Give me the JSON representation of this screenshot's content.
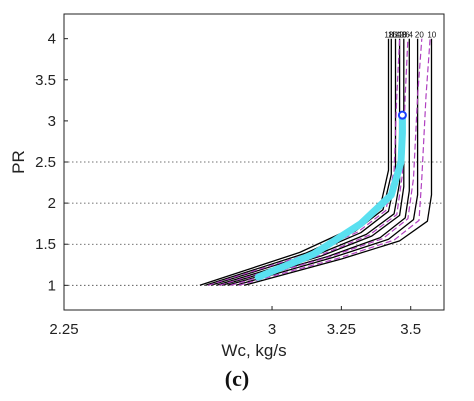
{
  "caption": "(c)",
  "chart_data": {
    "type": "line",
    "xlabel": "Wc, kg/s",
    "ylabel": "PR",
    "xlim": [
      2.25,
      3.62
    ],
    "ylim": [
      0.7,
      4.3
    ],
    "xticks": [
      "2.25",
      "3",
      "3.25",
      "3.5"
    ],
    "xtick_values": [
      2.25,
      3,
      3.25,
      3.5
    ],
    "yticks": [
      "1",
      "1.5",
      "2",
      "2.5",
      "3",
      "3.5",
      "4"
    ],
    "ytick_values": [
      1,
      1.5,
      2,
      2.5,
      3,
      3.5,
      4
    ],
    "grid": "horizontal dotted at 1, 1.5, 2, 2.5",
    "speed_labels": [
      "18",
      "16",
      "14",
      "12",
      "10",
      "8",
      "6",
      "4",
      "20",
      "10"
    ],
    "speed_label_x": [
      3.405,
      3.418,
      3.43,
      3.442,
      3.455,
      3.468,
      3.48,
      3.492,
      3.515,
      3.56
    ],
    "series": [
      {
        "color": "#000000",
        "style": "solid",
        "x": [
          2.74,
          3.1,
          3.28,
          3.39,
          3.42,
          3.42,
          3.42
        ],
        "y": [
          1.0,
          1.4,
          1.68,
          1.95,
          2.4,
          3.2,
          4.0
        ]
      },
      {
        "color": "#000000",
        "style": "solid",
        "x": [
          2.76,
          3.12,
          3.3,
          3.4,
          3.43,
          3.43,
          3.43
        ],
        "y": [
          1.0,
          1.39,
          1.66,
          1.92,
          2.35,
          3.2,
          4.0
        ]
      },
      {
        "color": "#000000",
        "style": "solid",
        "x": [
          2.78,
          3.14,
          3.32,
          3.42,
          3.445,
          3.445,
          3.445
        ],
        "y": [
          1.0,
          1.38,
          1.64,
          1.9,
          2.3,
          3.2,
          4.0
        ]
      },
      {
        "color": "#000000",
        "style": "solid",
        "x": [
          2.8,
          3.16,
          3.34,
          3.44,
          3.46,
          3.46,
          3.46
        ],
        "y": [
          1.0,
          1.37,
          1.62,
          1.87,
          2.25,
          3.2,
          4.0
        ]
      },
      {
        "color": "#000000",
        "style": "solid",
        "x": [
          2.82,
          3.18,
          3.36,
          3.46,
          3.475,
          3.475,
          3.475
        ],
        "y": [
          1.0,
          1.36,
          1.6,
          1.85,
          2.2,
          3.2,
          4.0
        ]
      },
      {
        "color": "#000000",
        "style": "solid",
        "x": [
          2.84,
          3.2,
          3.39,
          3.48,
          3.495,
          3.495,
          3.495
        ],
        "y": [
          1.0,
          1.35,
          1.58,
          1.82,
          2.15,
          3.2,
          4.0
        ]
      },
      {
        "color": "#000000",
        "style": "solid",
        "x": [
          2.87,
          3.22,
          3.42,
          3.51,
          3.525,
          3.525,
          3.525
        ],
        "y": [
          1.0,
          1.34,
          1.56,
          1.8,
          2.1,
          3.2,
          4.0
        ]
      },
      {
        "color": "#000000",
        "style": "solid",
        "x": [
          2.9,
          3.25,
          3.46,
          3.56,
          3.575,
          3.575,
          3.575
        ],
        "y": [
          1.0,
          1.32,
          1.54,
          1.78,
          2.1,
          3.2,
          4.0
        ]
      },
      {
        "color": "#b040c0",
        "style": "dashed",
        "x": [
          2.77,
          3.13,
          3.31,
          3.41,
          3.44,
          3.45,
          3.46
        ],
        "y": [
          1.0,
          1.38,
          1.65,
          1.91,
          2.4,
          3.3,
          4.0
        ]
      },
      {
        "color": "#b040c0",
        "style": "dashed",
        "x": [
          2.81,
          3.17,
          3.35,
          3.45,
          3.47,
          3.48,
          3.49
        ],
        "y": [
          1.0,
          1.36,
          1.61,
          1.86,
          2.35,
          3.3,
          4.0
        ]
      },
      {
        "color": "#b040c0",
        "style": "dashed",
        "x": [
          2.85,
          3.21,
          3.4,
          3.49,
          3.51,
          3.525,
          3.54
        ],
        "y": [
          1.0,
          1.35,
          1.57,
          1.81,
          2.3,
          3.3,
          4.0
        ]
      },
      {
        "color": "#b040c0",
        "style": "dashed",
        "x": [
          2.88,
          3.24,
          3.44,
          3.53,
          3.54,
          3.555,
          3.57
        ],
        "y": [
          1.0,
          1.33,
          1.55,
          1.79,
          2.3,
          3.3,
          4.0
        ]
      },
      {
        "color": "#5ae0f0",
        "style": "thick",
        "x": [
          2.95,
          3.15,
          3.32,
          3.43,
          3.465,
          3.47,
          3.47
        ],
        "y": [
          1.1,
          1.38,
          1.75,
          2.1,
          2.5,
          2.85,
          3.07
        ]
      }
    ],
    "marker": {
      "x": 3.47,
      "y": 3.07,
      "color": "#1a3fff"
    }
  }
}
